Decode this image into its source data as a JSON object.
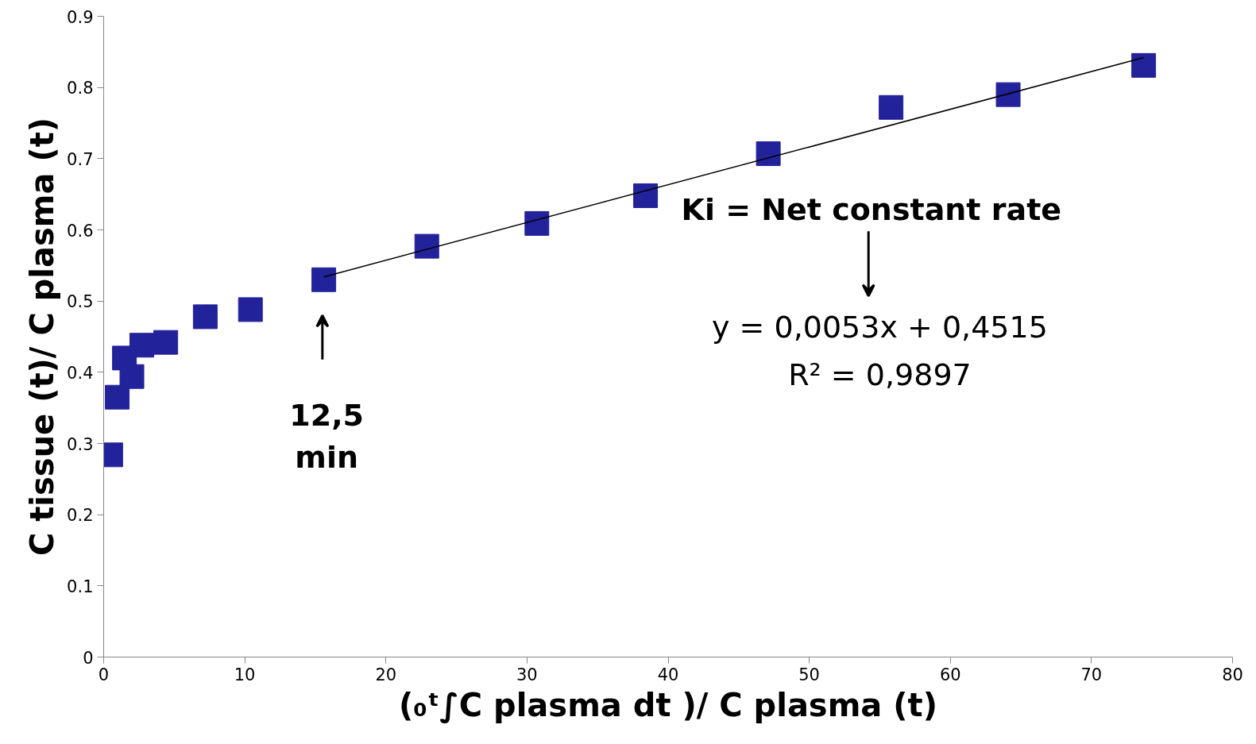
{
  "chart_data": {
    "type": "scatter",
    "xlabel": "(₀ᵗ∫C plasma dt )/ C plasma (t)",
    "ylabel": "C tissue (t)/ C plasma (t)",
    "series": [
      {
        "color": "#22229a",
        "marker": "square",
        "x": [
          0.5,
          0.96,
          1.47,
          2.0,
          2.7,
          4.4,
          7.2,
          10.4,
          15.6,
          22.9,
          30.7,
          38.4,
          47.1,
          55.8,
          64.1,
          73.7
        ],
        "values": [
          0.284,
          0.365,
          0.42,
          0.394,
          0.438,
          0.442,
          0.478,
          0.488,
          0.53,
          0.577,
          0.609,
          0.648,
          0.707,
          0.772,
          0.79,
          0.831
        ]
      },
      {
        "type": "line",
        "color": "#000000",
        "x": [
          15.6,
          73.7
        ],
        "values": [
          0.534,
          0.842
        ]
      }
    ],
    "xlim": [
      0,
      80
    ],
    "xticks": [
      0,
      10,
      20,
      30,
      40,
      50,
      60,
      70,
      80
    ],
    "ylim": [
      0,
      0.9
    ],
    "yticks": [
      0,
      0.1,
      0.2,
      0.3,
      0.4,
      0.5,
      0.6,
      0.7,
      0.8,
      0.9
    ],
    "grid": false,
    "annotations": [
      "12,5\nmin",
      "Ki = Net constant rate",
      "y = 0,0053x + 0,4515",
      "R² = 0,9897"
    ]
  }
}
